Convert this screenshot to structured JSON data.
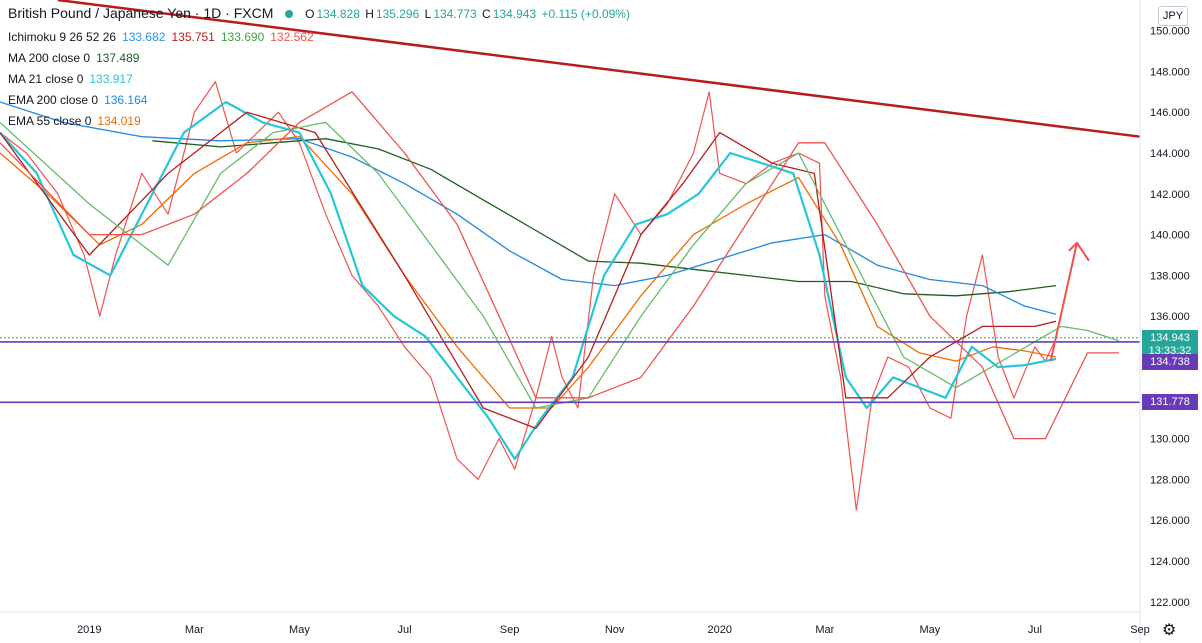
{
  "header": {
    "title": "British Pound / Japanese Yen · 1D · FXCM",
    "ohlc": {
      "o_label": "O",
      "o": "134.828",
      "h_label": "H",
      "h": "135.296",
      "l_label": "L",
      "l": "134.773",
      "c_label": "C",
      "c": "134.943",
      "change": "+0.115 (+0.09%)"
    }
  },
  "indicators": [
    {
      "name": "Ichimoku 9 26 52 26",
      "values": [
        "133.682",
        "135.751",
        "133.690",
        "132.562"
      ],
      "colors": [
        "#2196f3",
        "#b71c1c",
        "#43a047",
        "#ef5350"
      ]
    },
    {
      "name": "MA 200 close 0",
      "values": [
        "137.489"
      ],
      "colors": [
        "#1b5e20"
      ]
    },
    {
      "name": "MA 21 close 0",
      "values": [
        "133.917"
      ],
      "colors": [
        "#26c6da"
      ]
    },
    {
      "name": "EMA 200 close 0",
      "values": [
        "136.164"
      ],
      "colors": [
        "#1e88e5"
      ]
    },
    {
      "name": "EMA 55 close 0",
      "values": [
        "134.019"
      ],
      "colors": [
        "#ef6c00"
      ]
    }
  ],
  "currency": "JPY",
  "price_tags": [
    {
      "label": "134.943",
      "color": "#26a69a",
      "value": 134.943
    },
    {
      "label": "13:33:32",
      "color": "#26a69a",
      "value": 134.3
    },
    {
      "label": "134.738",
      "color": "#673ab7",
      "value": 133.75
    },
    {
      "label": "131.778",
      "color": "#673ab7",
      "value": 131.778
    }
  ],
  "chart_data": {
    "type": "line",
    "title": "British Pound / Japanese Yen · 1D · FXCM",
    "ylim": [
      121.5,
      151.5
    ],
    "y_ticks": [
      "122.000",
      "124.000",
      "126.000",
      "128.000",
      "130.000",
      "132.000",
      "134.000",
      "136.000",
      "138.000",
      "140.000",
      "142.000",
      "144.000",
      "146.000",
      "148.000",
      "150.000"
    ],
    "x_ticks": [
      "2019",
      "Mar",
      "May",
      "Jul",
      "Sep",
      "Nov",
      "2020",
      "Mar",
      "May",
      "Jul",
      "Sep"
    ],
    "x_tick_months": [
      0,
      2,
      4,
      6,
      8,
      10,
      12,
      14,
      16,
      18,
      20
    ],
    "xlim_months": [
      -1.7,
      20
    ],
    "grid": false,
    "series": [
      {
        "style": "close",
        "color": "#ef5350",
        "x": [
          -1.7,
          -1.2,
          -0.6,
          -0.1,
          0.2,
          0.5,
          1.0,
          1.5,
          2.0,
          2.4,
          2.8,
          3.2,
          3.6,
          4.0,
          4.5,
          5.0,
          5.5,
          6.0,
          6.5,
          7.0,
          7.4,
          7.8,
          8.1,
          8.5,
          8.8,
          9.0,
          9.3,
          9.6,
          10.0,
          10.5,
          11.0,
          11.5,
          11.8,
          12.0,
          12.5,
          13.0,
          13.5,
          13.9,
          14.0,
          14.3,
          14.6,
          14.9,
          15.2,
          15.6,
          16.0,
          16.4,
          16.7,
          17.0,
          17.3,
          17.6,
          18.0,
          18.2,
          18.4
        ],
        "y": [
          145.0,
          144.0,
          142.0,
          139.0,
          136.0,
          139.0,
          143.0,
          141.0,
          146.0,
          147.5,
          144.0,
          145.0,
          146.0,
          144.5,
          141.0,
          138.0,
          136.5,
          134.5,
          133.0,
          129.0,
          128.0,
          130.0,
          128.5,
          132.0,
          135.0,
          133.0,
          131.5,
          138.0,
          142.0,
          140.0,
          141.5,
          144.0,
          147.0,
          143.0,
          142.5,
          143.5,
          144.0,
          143.5,
          137.0,
          133.0,
          126.5,
          132.0,
          134.0,
          133.5,
          131.5,
          131.0,
          136.0,
          139.0,
          134.0,
          132.0,
          134.5,
          133.8,
          134.9
        ]
      },
      {
        "name": "MA 200 close 0",
        "color": "#1b5e20",
        "x": [
          1.2,
          2.5,
          3.5,
          4.5,
          5.5,
          6.5,
          7.5,
          8.5,
          9.5,
          10.5,
          11.5,
          12.5,
          13.5,
          14.5,
          15.5,
          16.5,
          17.5,
          18.4
        ],
        "y": [
          144.6,
          144.3,
          144.5,
          144.7,
          144.2,
          143.2,
          141.7,
          140.2,
          138.7,
          138.6,
          138.3,
          138.0,
          137.7,
          137.7,
          137.1,
          137.0,
          137.2,
          137.5
        ]
      },
      {
        "name": "EMA 200 close 0",
        "color": "#1e88e5",
        "x": [
          -1.7,
          -0.5,
          1.0,
          2.5,
          4.0,
          5.0,
          6.0,
          7.0,
          8.0,
          9.0,
          10.0,
          11.0,
          12.0,
          13.0,
          14.0,
          15.0,
          16.0,
          17.0,
          17.8,
          18.4
        ],
        "y": [
          146.5,
          145.5,
          144.8,
          144.6,
          144.7,
          143.8,
          142.5,
          141.0,
          139.2,
          137.8,
          137.5,
          138.0,
          138.8,
          139.6,
          140.0,
          138.5,
          137.8,
          137.5,
          136.5,
          136.1
        ]
      },
      {
        "name": "EMA 55 close 0",
        "color": "#ef6c00",
        "x": [
          -1.7,
          -0.8,
          0.2,
          1.0,
          2.0,
          3.0,
          4.0,
          5.0,
          6.0,
          7.0,
          8.0,
          8.8,
          9.5,
          10.5,
          11.5,
          12.5,
          13.5,
          14.3,
          15.0,
          15.8,
          16.5,
          17.2,
          17.8,
          18.4
        ],
        "y": [
          144.0,
          142.0,
          139.5,
          140.5,
          143.0,
          144.5,
          144.8,
          142.0,
          138.0,
          134.5,
          131.5,
          131.5,
          133.5,
          137.0,
          140.0,
          141.5,
          142.8,
          139.5,
          135.5,
          134.2,
          133.8,
          134.5,
          134.3,
          134.0
        ]
      },
      {
        "name": "MA 21 close 0",
        "color": "#26c6da",
        "x": [
          -1.7,
          -1.0,
          -0.3,
          0.4,
          1.0,
          1.8,
          2.6,
          3.3,
          4.0,
          4.6,
          5.2,
          5.8,
          6.4,
          7.0,
          7.6,
          8.1,
          8.6,
          9.2,
          9.8,
          10.4,
          11.0,
          11.6,
          12.2,
          12.8,
          13.4,
          13.9,
          14.4,
          14.8,
          15.3,
          15.8,
          16.3,
          16.8,
          17.3,
          17.8,
          18.4
        ],
        "y": [
          145.0,
          143.0,
          139.0,
          138.0,
          141.0,
          145.0,
          146.5,
          145.5,
          145.0,
          142.0,
          137.5,
          136.0,
          135.0,
          133.0,
          131.0,
          129.0,
          131.0,
          133.0,
          138.0,
          140.5,
          141.0,
          142.0,
          144.0,
          143.5,
          143.0,
          139.0,
          133.0,
          131.5,
          133.0,
          132.5,
          132.0,
          134.5,
          133.5,
          133.6,
          133.9
        ]
      },
      {
        "name": "Ichimoku Kijun",
        "color": "#b71c1c",
        "x": [
          -1.7,
          0.0,
          1.5,
          3.0,
          4.3,
          6.0,
          7.5,
          8.5,
          9.5,
          10.5,
          11.3,
          12.0,
          13.0,
          13.8,
          14.4,
          15.2,
          16.0,
          17.0,
          18.0,
          18.4
        ],
        "y": [
          145.0,
          139.0,
          143.0,
          146.0,
          145.0,
          138.0,
          131.5,
          130.5,
          134.0,
          140.0,
          142.5,
          145.0,
          143.5,
          143.0,
          132.0,
          132.0,
          134.0,
          135.5,
          135.5,
          135.75
        ]
      },
      {
        "name": "Ichimoku Senkou Span A",
        "color": "#66bb6a",
        "x": [
          -1.7,
          0.0,
          1.5,
          2.5,
          3.5,
          4.5,
          5.5,
          6.5,
          7.5,
          8.5,
          9.5,
          10.5,
          11.5,
          12.5,
          13.5,
          14.5,
          15.5,
          16.5,
          17.5,
          18.5,
          19.0,
          19.6
        ],
        "y": [
          145.5,
          141.5,
          138.5,
          143.0,
          145.0,
          145.5,
          143.0,
          139.5,
          136.0,
          131.5,
          132.0,
          136.0,
          139.5,
          142.5,
          144.0,
          139.0,
          134.0,
          132.5,
          134.0,
          135.5,
          135.3,
          134.8
        ]
      },
      {
        "name": "Ichimoku Senkou Span B",
        "color": "#ef5350",
        "x": [
          -1.7,
          0.0,
          1.0,
          2.0,
          3.0,
          4.0,
          5.0,
          6.0,
          7.0,
          7.8,
          8.5,
          9.5,
          10.5,
          11.5,
          12.5,
          13.5,
          14.0,
          15.0,
          16.0,
          17.0,
          17.6,
          18.2,
          19.0,
          19.6
        ],
        "y": [
          144.5,
          140.0,
          140.0,
          141.0,
          143.0,
          145.5,
          147.0,
          144.0,
          140.5,
          136.0,
          132.0,
          132.0,
          133.0,
          136.5,
          140.5,
          144.5,
          144.5,
          140.5,
          136.0,
          133.5,
          130.0,
          130.0,
          134.2,
          134.2
        ]
      }
    ],
    "annotations": [
      {
        "name": "resistance trendline",
        "color": "#b71c1c",
        "x": [
          -0.6,
          20.0
        ],
        "y": [
          151.5,
          144.8
        ]
      },
      {
        "name": "support line 134.738",
        "color": "#673ab7",
        "x": [
          -1.7,
          20.0
        ],
        "y": [
          134.738,
          134.738
        ]
      },
      {
        "name": "support line 131.778",
        "color": "#673ab7",
        "x": [
          -1.7,
          20.0
        ],
        "y": [
          131.778,
          131.778
        ]
      },
      {
        "name": "forecast arrow",
        "color": "#ef5350",
        "x": [
          18.3,
          18.8
        ],
        "y": [
          133.8,
          139.6
        ]
      }
    ]
  }
}
